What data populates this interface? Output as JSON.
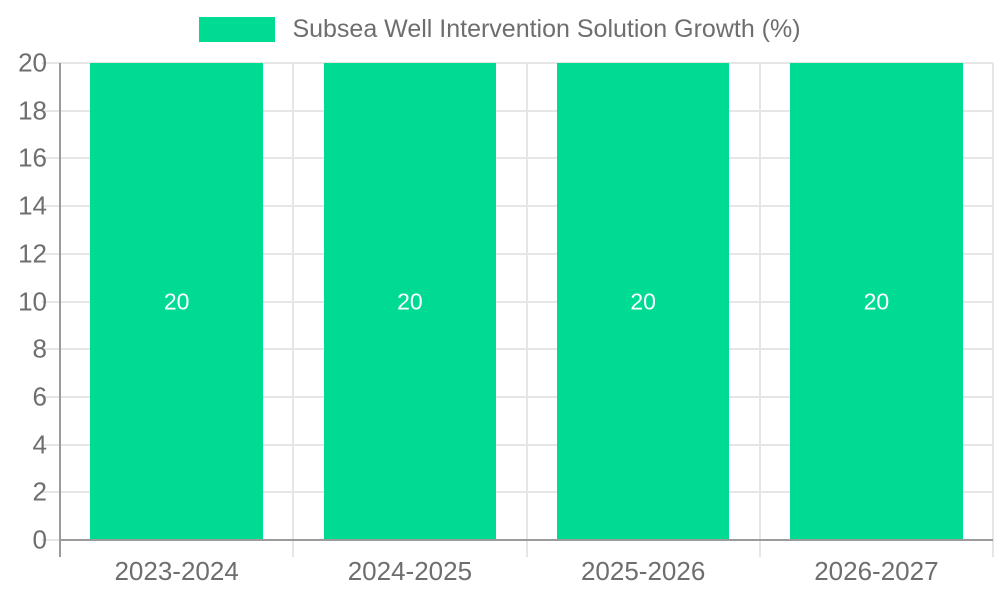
{
  "legend": {
    "position": "top-center",
    "entries": [
      "Subsea Well Intervention Solution Growth (%)"
    ]
  },
  "colors": {
    "bar": "#00DB94",
    "grid": "#e6e6e6",
    "axis": "#9b9b9b",
    "tick_text": "#6e6e6e",
    "label_text": "#6e6e6e",
    "bar_label": "#ffffff",
    "background": "#ffffff"
  },
  "chart_data": {
    "type": "bar",
    "title": "",
    "legend_entries": [
      "Subsea Well Intervention Solution Growth (%)"
    ],
    "categories": [
      "2023-2024",
      "2024-2025",
      "2025-2026",
      "2026-2027"
    ],
    "values": [
      20,
      20,
      20,
      20
    ],
    "bar_labels": [
      "20",
      "20",
      "20",
      "20"
    ],
    "bar_label_position": "middle",
    "xlabel": "",
    "ylabel": "",
    "ylim": [
      0,
      20
    ],
    "ytick_step": 2,
    "yticks": [
      0,
      2,
      4,
      6,
      8,
      10,
      12,
      14,
      16,
      18,
      20
    ],
    "grid": "on",
    "legend_position": "top-center"
  }
}
